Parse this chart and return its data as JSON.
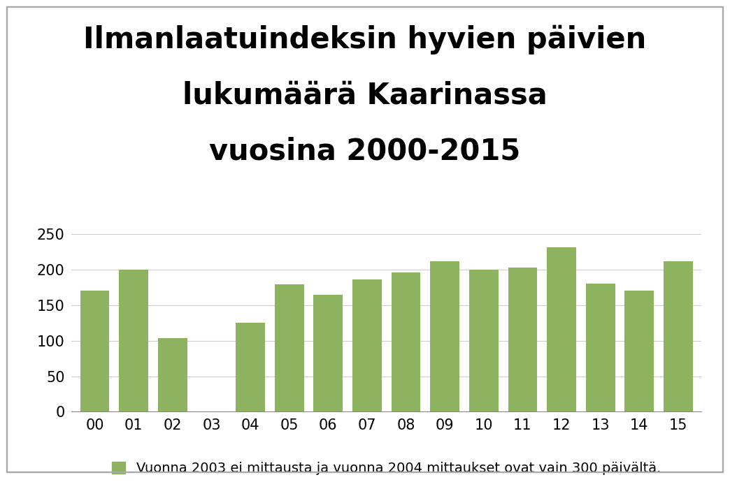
{
  "title_lines": [
    "Ilmanlaatuindeksin hyvien päivien",
    "lukumäärä Kaarinassa",
    "vuosina 2000-2015"
  ],
  "categories": [
    "00",
    "01",
    "02",
    "03",
    "04",
    "05",
    "06",
    "07",
    "08",
    "09",
    "10",
    "11",
    "12",
    "13",
    "14",
    "15"
  ],
  "values": [
    170,
    200,
    104,
    0,
    125,
    179,
    165,
    186,
    196,
    212,
    200,
    203,
    231,
    180,
    170,
    212
  ],
  "bar_color": "#8DB360",
  "ylim": [
    0,
    275
  ],
  "yticks": [
    0,
    50,
    100,
    150,
    200,
    250
  ],
  "legend_text": "Vuonna 2003 ei mittausta ja vuonna 2004 mittaukset ovat vain 300 päivältä.",
  "background_color": "#ffffff",
  "title_fontsize": 30,
  "tick_fontsize": 15,
  "legend_fontsize": 14,
  "border_color": "#aaaaaa"
}
